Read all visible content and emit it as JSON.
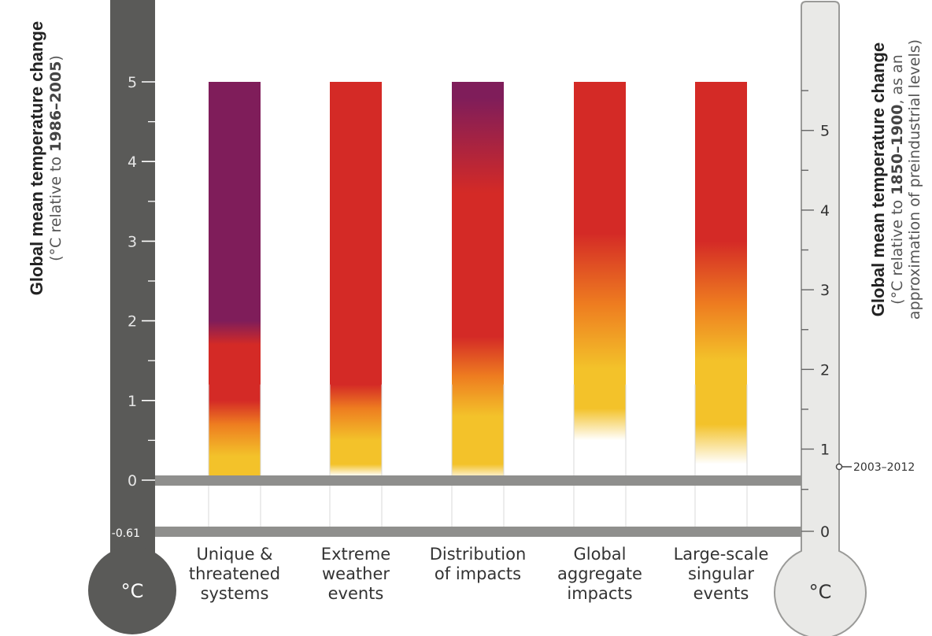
{
  "left_axis": {
    "title": "Global mean temperature change",
    "subtitle_pre": "(°C relative to ",
    "subtitle_bold": "1986–2005",
    "subtitle_post": ")",
    "ticks": [
      "5",
      "4",
      "3",
      "2",
      "1",
      "0",
      "-0.61"
    ],
    "unit_label": "°C"
  },
  "right_axis": {
    "title": "Global mean temperature change",
    "subtitle_line1_pre": "(°C relative to ",
    "subtitle_line1_bold": "1850–1900",
    "subtitle_line1_post": ", as an",
    "subtitle_line2": "approximation of preindustrial levels)",
    "ticks": [
      "5",
      "4",
      "3",
      "2",
      "1",
      "0"
    ],
    "unit_label": "°C",
    "annotation": "2003–2012"
  },
  "colors": {
    "purple": "#7f1d5a",
    "red": "#d42a26",
    "orange": "#ee7d20",
    "yellow": "#f3c22a",
    "white": "#ffffff",
    "left_thermometer": "#5a5a58",
    "right_thermometer": "#e9e9e7",
    "reference_line": "#8f8f8d"
  },
  "chart_data": {
    "type": "bar",
    "categories": [
      [
        "Unique &",
        "threatened",
        "systems"
      ],
      [
        "Extreme",
        "weather",
        "events"
      ],
      [
        "Distribution",
        "of impacts"
      ],
      [
        "Global",
        "aggregate",
        "impacts"
      ],
      [
        "Large-scale",
        "singular",
        "events"
      ]
    ],
    "ylim_left": [
      -0.61,
      5
    ],
    "ylim_right": [
      0,
      5.61
    ],
    "reference_lines_left": [
      0,
      -0.61
    ],
    "annotation_right_value": 0.78,
    "series": [
      {
        "stops": [
          {
            "t": -0.3,
            "c": "white"
          },
          {
            "t": -0.1,
            "c": "yellow"
          },
          {
            "t": 0.3,
            "c": "yellow"
          },
          {
            "t": 0.7,
            "c": "orange"
          },
          {
            "t": 1.0,
            "c": "red"
          },
          {
            "t": 1.7,
            "c": "red"
          },
          {
            "t": 2.0,
            "c": "purple"
          },
          {
            "t": 5.0,
            "c": "purple"
          }
        ]
      },
      {
        "stops": [
          {
            "t": 0.05,
            "c": "white"
          },
          {
            "t": 0.2,
            "c": "yellow"
          },
          {
            "t": 0.5,
            "c": "yellow"
          },
          {
            "t": 0.9,
            "c": "orange"
          },
          {
            "t": 1.2,
            "c": "red"
          },
          {
            "t": 5.0,
            "c": "red"
          }
        ]
      },
      {
        "stops": [
          {
            "t": 0.0,
            "c": "white"
          },
          {
            "t": 0.2,
            "c": "yellow"
          },
          {
            "t": 0.8,
            "c": "yellow"
          },
          {
            "t": 1.3,
            "c": "orange"
          },
          {
            "t": 1.8,
            "c": "red"
          },
          {
            "t": 3.6,
            "c": "red"
          },
          {
            "t": 4.8,
            "c": "purple"
          },
          {
            "t": 5.0,
            "c": "purple"
          }
        ]
      },
      {
        "stops": [
          {
            "t": 0.5,
            "c": "white"
          },
          {
            "t": 0.9,
            "c": "yellow"
          },
          {
            "t": 1.4,
            "c": "yellow"
          },
          {
            "t": 2.2,
            "c": "orange"
          },
          {
            "t": 3.1,
            "c": "red"
          },
          {
            "t": 5.0,
            "c": "red"
          }
        ]
      },
      {
        "stops": [
          {
            "t": -0.2,
            "c": "white"
          },
          {
            "t": 0.2,
            "c": "white"
          },
          {
            "t": 0.7,
            "c": "yellow"
          },
          {
            "t": 1.5,
            "c": "yellow"
          },
          {
            "t": 2.2,
            "c": "orange"
          },
          {
            "t": 3.0,
            "c": "red"
          },
          {
            "t": 5.0,
            "c": "red"
          }
        ]
      }
    ]
  }
}
